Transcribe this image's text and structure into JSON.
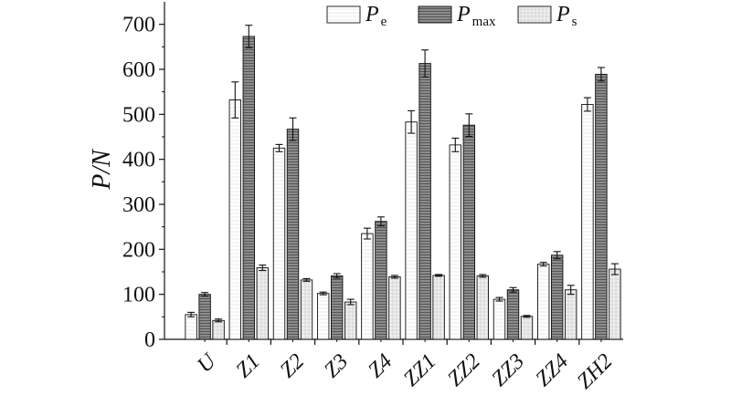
{
  "chart_data": {
    "type": "bar",
    "ylabel": "P/N",
    "ylim": [
      0,
      750
    ],
    "yticks": [
      0,
      100,
      200,
      300,
      400,
      500,
      600,
      700
    ],
    "categories": [
      "U",
      "Z1",
      "Z2",
      "Z3",
      "Z4",
      "ZZ1",
      "ZZ2",
      "ZZ3",
      "ZZ4",
      "ZH2"
    ],
    "legend_position": "top-right",
    "grid": false,
    "series": [
      {
        "name_base": "P",
        "name_sub": "e",
        "color": "#ffffff",
        "pattern": "none",
        "values": [
          55,
          532,
          425,
          102,
          235,
          483,
          432,
          89,
          167,
          522
        ],
        "errors": [
          5,
          40,
          8,
          3,
          12,
          25,
          15,
          4,
          4,
          15
        ]
      },
      {
        "name_base": "P",
        "name_sub": "max",
        "color": "#8c8c8c",
        "pattern": "dark-horizontal-lines",
        "values": [
          100,
          673,
          467,
          141,
          262,
          613,
          476,
          110,
          187,
          589
        ],
        "errors": [
          4,
          25,
          25,
          5,
          10,
          30,
          25,
          5,
          8,
          15
        ]
      },
      {
        "name_base": "P",
        "name_sub": "s",
        "color": "#f2f2f2",
        "pattern": "light-grid",
        "values": [
          42,
          159,
          132,
          83,
          139,
          142,
          141,
          51,
          110,
          156
        ],
        "errors": [
          3,
          6,
          3,
          6,
          3,
          2,
          3,
          2,
          10,
          12
        ]
      }
    ]
  }
}
